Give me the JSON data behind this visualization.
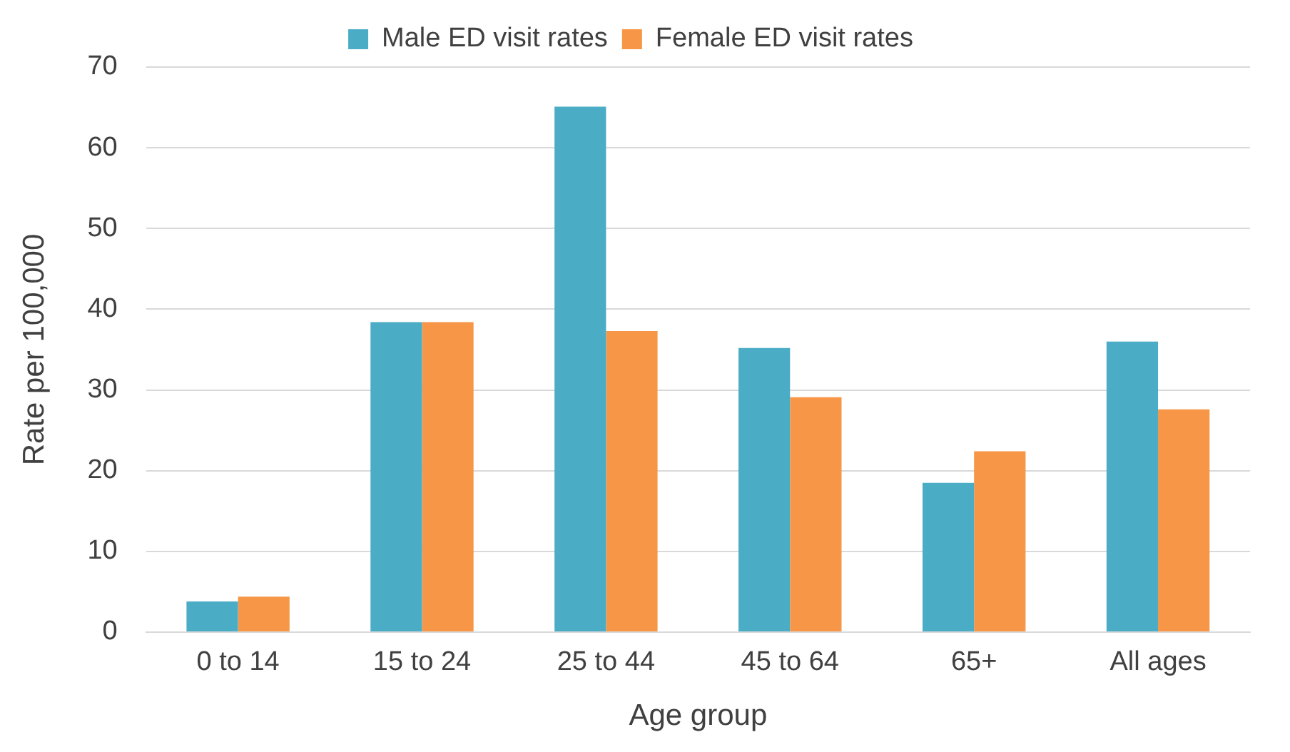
{
  "chart_data": {
    "type": "bar",
    "xlabel": "Age group",
    "ylabel": "Rate per 100,000",
    "categories": [
      "0 to 14",
      "15 to 24",
      "25 to 44",
      "45 to 64",
      "65+",
      "All ages"
    ],
    "series": [
      {
        "name": "Male ED visit rates",
        "color": "#4bacc6",
        "values": [
          3.8,
          38.4,
          65.1,
          35.2,
          18.5,
          36.0
        ]
      },
      {
        "name": "Female ED visit rates",
        "color": "#f79646",
        "values": [
          4.4,
          38.4,
          37.3,
          29.1,
          22.4,
          27.6
        ]
      }
    ],
    "ylim": [
      0,
      70
    ],
    "yticks": [
      0,
      10,
      20,
      30,
      40,
      50,
      60,
      70
    ],
    "grid": "y",
    "legend": "top"
  }
}
